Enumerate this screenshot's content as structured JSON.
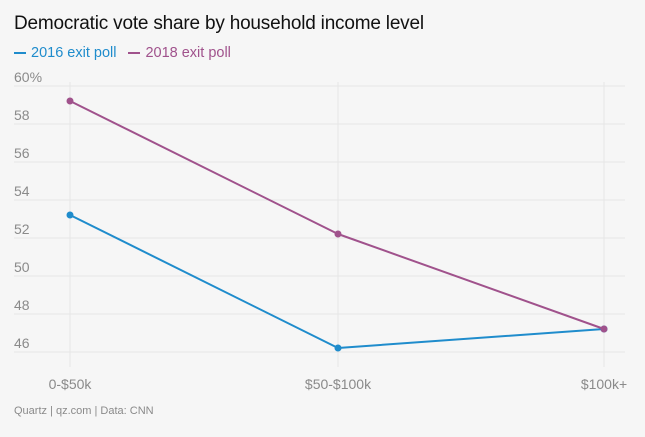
{
  "header": {
    "title": "Democratic vote share by household income level"
  },
  "footer": {
    "source": "Quartz | qz.com | Data: CNN"
  },
  "colors": {
    "background": "#f6f6f6",
    "grid": "#e6e6e6",
    "tick_text": "#8a8a8a"
  },
  "chart_data": {
    "type": "line",
    "title": "Democratic vote share by household income level",
    "xlabel": "",
    "ylabel": "",
    "categories": [
      "0-$50k",
      "$50-$100k",
      "$100k+"
    ],
    "ylim": [
      45,
      60
    ],
    "yticks": [
      46,
      48,
      50,
      52,
      54,
      56,
      58,
      60
    ],
    "ytick_labels": [
      "46",
      "48",
      "50",
      "52",
      "54",
      "56",
      "58",
      "60%"
    ],
    "grid": true,
    "legend_position": "top-left",
    "series": [
      {
        "name": "2016 exit poll",
        "color": "#1f8ccc",
        "values": [
          53,
          46,
          47
        ]
      },
      {
        "name": "2018 exit poll",
        "color": "#a0528c",
        "values": [
          59,
          52,
          47
        ]
      }
    ]
  }
}
